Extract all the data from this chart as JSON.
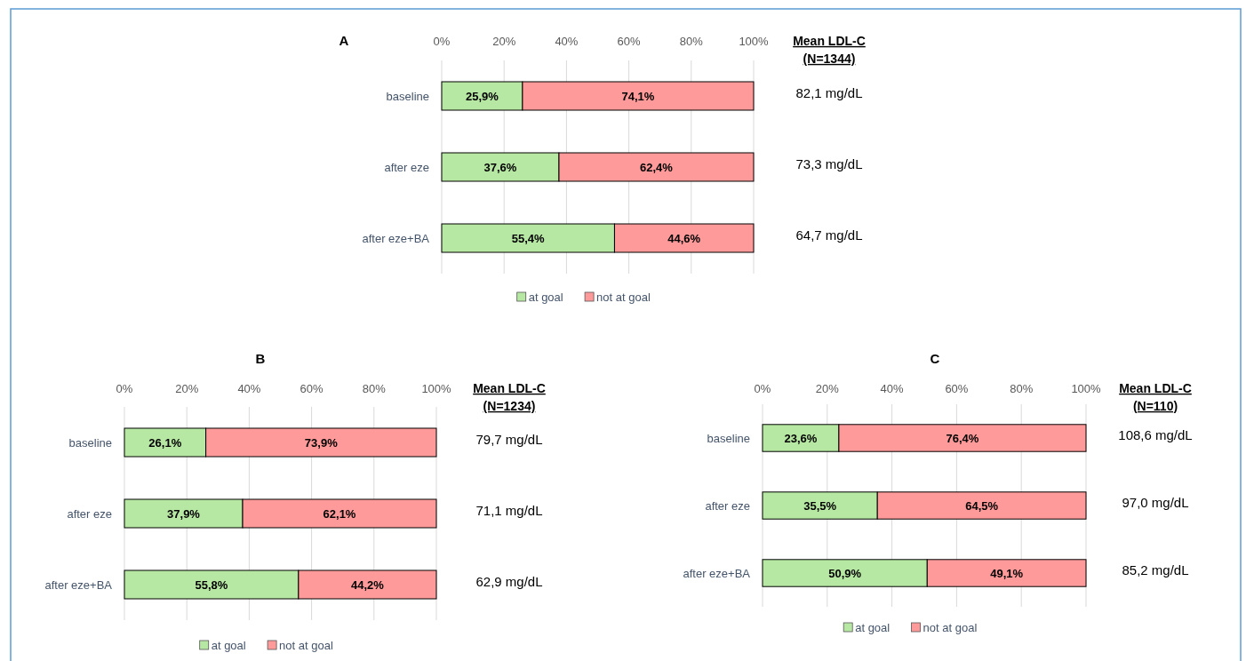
{
  "chart_data": [
    {
      "type": "bar",
      "orientation": "horizontal",
      "stacked": true,
      "title": "A",
      "categories": [
        "baseline",
        "after eze",
        "after eze+BA"
      ],
      "xlim": [
        0,
        100
      ],
      "xticks": [
        {
          "value": 0,
          "label": "0%"
        },
        {
          "value": 20,
          "label": "20%"
        },
        {
          "value": 40,
          "label": "40%"
        },
        {
          "value": 60,
          "label": "60%"
        },
        {
          "value": 80,
          "label": "80%"
        },
        {
          "value": 100,
          "label": "100%"
        }
      ],
      "grid": "x",
      "legend": "bottom",
      "series": [
        {
          "name": "at goal",
          "color": "#b7e8a3",
          "values": [
            25.9,
            37.6,
            55.4
          ],
          "value_labels": [
            "25,9%",
            "37,6%",
            "55,4%"
          ]
        },
        {
          "name": "not at goal",
          "color": "#ff9a9a",
          "values": [
            74.1,
            62.4,
            44.6
          ],
          "value_labels": [
            "74,1%",
            "62,4%",
            "44,6%"
          ]
        }
      ],
      "annotations": [
        "Mean LDL-C (N=1344)",
        "82,1 mg/dL",
        "73,3 mg/dL",
        "64,7 mg/dL"
      ]
    },
    {
      "type": "bar",
      "orientation": "horizontal",
      "stacked": true,
      "title": "B",
      "categories": [
        "baseline",
        "after eze",
        "after eze+BA"
      ],
      "xlim": [
        0,
        100
      ],
      "xticks": [
        {
          "value": 0,
          "label": "0%"
        },
        {
          "value": 20,
          "label": "20%"
        },
        {
          "value": 40,
          "label": "40%"
        },
        {
          "value": 60,
          "label": "60%"
        },
        {
          "value": 80,
          "label": "80%"
        },
        {
          "value": 100,
          "label": "100%"
        }
      ],
      "grid": "x",
      "legend": "bottom",
      "series": [
        {
          "name": "at goal",
          "color": "#b7e8a3",
          "values": [
            26.1,
            37.9,
            55.8
          ],
          "value_labels": [
            "26,1%",
            "37,9%",
            "55,8%"
          ]
        },
        {
          "name": "not at goal",
          "color": "#ff9a9a",
          "values": [
            73.9,
            62.1,
            44.2
          ],
          "value_labels": [
            "73,9%",
            "62,1%",
            "44,2%"
          ]
        }
      ],
      "annotations": [
        "Mean LDL-C (N=1234)",
        "79,7 mg/dL",
        "71,1 mg/dL",
        "62,9 mg/dL"
      ]
    },
    {
      "type": "bar",
      "orientation": "horizontal",
      "stacked": true,
      "title": "C",
      "categories": [
        "baseline",
        "after eze",
        "after eze+BA"
      ],
      "xlim": [
        0,
        100
      ],
      "xticks": [
        {
          "value": 0,
          "label": "0%"
        },
        {
          "value": 20,
          "label": "20%"
        },
        {
          "value": 40,
          "label": "40%"
        },
        {
          "value": 60,
          "label": "60%"
        },
        {
          "value": 80,
          "label": "80%"
        },
        {
          "value": 100,
          "label": "100%"
        }
      ],
      "grid": "x",
      "legend": "bottom",
      "series": [
        {
          "name": "at goal",
          "color": "#b7e8a3",
          "values": [
            23.6,
            35.5,
            50.9
          ],
          "value_labels": [
            "23,6%",
            "35,5%",
            "50,9%"
          ]
        },
        {
          "name": "not at goal",
          "color": "#ff9a9a",
          "values": [
            76.4,
            64.5,
            49.1
          ],
          "value_labels": [
            "76,4%",
            "64,5%",
            "49,1%"
          ]
        }
      ],
      "annotations": [
        "Mean LDL-C (N=110)",
        "108,6 mg/dL",
        "97,0 mg/dL",
        "85,2 mg/dL"
      ]
    }
  ]
}
